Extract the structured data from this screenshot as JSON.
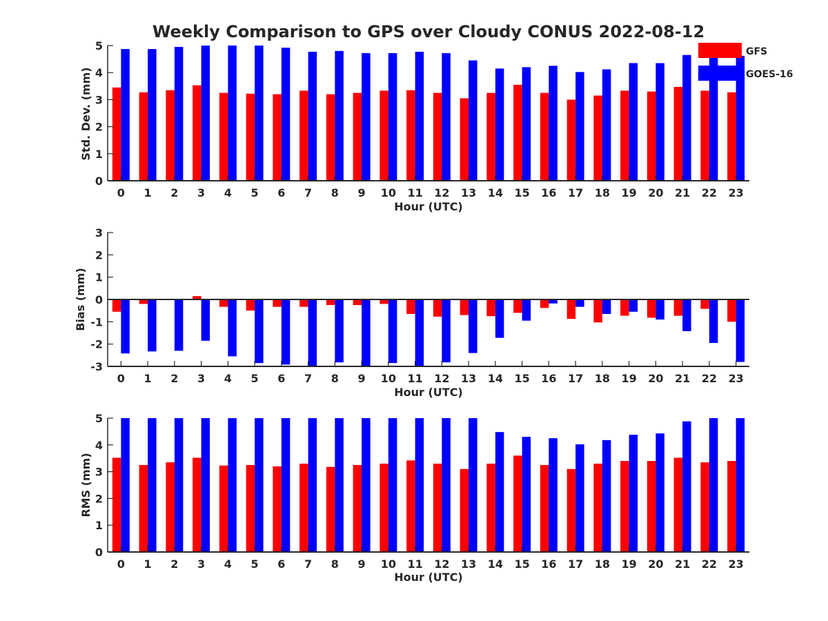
{
  "title": "Weekly Comparison to GPS over Cloudy CONUS 2022-08-12",
  "colors": {
    "GFS": "#ff0000",
    "GOES-16": "#0000ff"
  },
  "legend": {
    "placement": "top-right",
    "items": [
      "GFS",
      "GOES-16"
    ]
  },
  "chart_data": [
    {
      "type": "bar",
      "title": "Weekly Comparison to GPS over Cloudy CONUS 2022-08-12",
      "xlabel": "Hour (UTC)",
      "ylabel": "Std. Dev. (mm)",
      "ylim": [
        0,
        5
      ],
      "yticks": [
        0,
        1,
        2,
        3,
        4,
        5
      ],
      "grid": false,
      "categories": [
        "0",
        "1",
        "2",
        "3",
        "4",
        "5",
        "6",
        "7",
        "8",
        "9",
        "10",
        "11",
        "12",
        "13",
        "14",
        "15",
        "16",
        "17",
        "18",
        "19",
        "20",
        "21",
        "22",
        "23"
      ],
      "series": [
        {
          "name": "GFS",
          "values": [
            3.45,
            3.27,
            3.35,
            3.53,
            3.25,
            3.22,
            3.2,
            3.33,
            3.2,
            3.25,
            3.33,
            3.35,
            3.25,
            3.05,
            3.25,
            3.55,
            3.25,
            3.0,
            3.15,
            3.33,
            3.3,
            3.47,
            3.33,
            3.27
          ]
        },
        {
          "name": "GOES-16",
          "values": [
            4.87,
            4.87,
            4.95,
            5.0,
            5.0,
            5.0,
            4.92,
            4.77,
            4.8,
            4.72,
            4.72,
            4.77,
            4.72,
            4.45,
            4.15,
            4.2,
            4.25,
            4.02,
            4.12,
            4.35,
            4.35,
            4.65,
            4.72,
            4.62
          ]
        }
      ]
    },
    {
      "type": "bar",
      "xlabel": "Hour (UTC)",
      "ylabel": "Bias (mm)",
      "ylim": [
        -3,
        3
      ],
      "yticks": [
        -3,
        -2,
        -1,
        0,
        1,
        2,
        3
      ],
      "grid": false,
      "categories": [
        "0",
        "1",
        "2",
        "3",
        "4",
        "5",
        "6",
        "7",
        "8",
        "9",
        "10",
        "11",
        "12",
        "13",
        "14",
        "15",
        "16",
        "17",
        "18",
        "19",
        "20",
        "21",
        "22",
        "23"
      ],
      "series": [
        {
          "name": "GFS",
          "values": [
            -0.55,
            -0.2,
            0.02,
            0.15,
            -0.33,
            -0.5,
            -0.33,
            -0.33,
            -0.25,
            -0.25,
            -0.2,
            -0.65,
            -0.77,
            -0.7,
            -0.75,
            -0.6,
            -0.38,
            -0.87,
            -1.03,
            -0.73,
            -0.82,
            -0.73,
            -0.42,
            -1.0
          ]
        },
        {
          "name": "GOES-16",
          "values": [
            -2.42,
            -2.33,
            -2.3,
            -1.85,
            -2.55,
            -2.85,
            -2.92,
            -3.0,
            -2.82,
            -3.0,
            -2.85,
            -3.0,
            -2.82,
            -2.4,
            -1.72,
            -0.95,
            -0.18,
            -0.33,
            -0.65,
            -0.55,
            -0.9,
            -1.42,
            -1.95,
            -2.8
          ]
        }
      ]
    },
    {
      "type": "bar",
      "xlabel": "Hour (UTC)",
      "ylabel": "RMS (mm)",
      "ylim": [
        0,
        5
      ],
      "yticks": [
        0,
        1,
        2,
        3,
        4,
        5
      ],
      "grid": false,
      "categories": [
        "0",
        "1",
        "2",
        "3",
        "4",
        "5",
        "6",
        "7",
        "8",
        "9",
        "10",
        "11",
        "12",
        "13",
        "14",
        "15",
        "16",
        "17",
        "18",
        "19",
        "20",
        "21",
        "22",
        "23"
      ],
      "series": [
        {
          "name": "GFS",
          "values": [
            3.52,
            3.25,
            3.35,
            3.52,
            3.23,
            3.25,
            3.2,
            3.3,
            3.18,
            3.25,
            3.3,
            3.42,
            3.3,
            3.1,
            3.3,
            3.6,
            3.25,
            3.1,
            3.3,
            3.4,
            3.4,
            3.52,
            3.35,
            3.4
          ]
        },
        {
          "name": "GOES-16",
          "values": [
            5.0,
            5.0,
            5.0,
            5.0,
            5.0,
            5.0,
            5.0,
            5.0,
            5.0,
            5.0,
            5.0,
            5.0,
            5.0,
            5.0,
            4.48,
            4.3,
            4.25,
            4.02,
            4.18,
            4.38,
            4.43,
            4.88,
            5.0,
            5.0
          ]
        }
      ]
    }
  ]
}
